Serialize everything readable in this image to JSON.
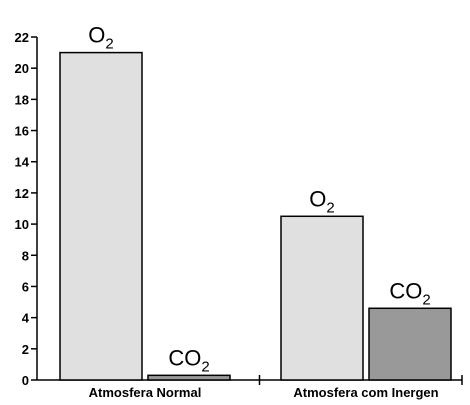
{
  "chart_data": {
    "type": "bar",
    "categories": [
      "Atmosfera Normal",
      "Atmosfera com Inergen"
    ],
    "series": [
      {
        "values": [
          21,
          10.5
        ],
        "labels": [
          [
            "O",
            "2"
          ],
          [
            "O",
            "2"
          ]
        ],
        "color": "#e0e0e0"
      },
      {
        "values": [
          0.3,
          4.6
        ],
        "labels": [
          [
            "CO",
            "2"
          ],
          [
            "CO",
            "2"
          ]
        ],
        "color": "#999999"
      }
    ],
    "ylim": [
      0,
      22
    ],
    "yticks": [
      0,
      2,
      4,
      6,
      8,
      10,
      12,
      14,
      16,
      18,
      20,
      22
    ],
    "title": "",
    "xlabel": "",
    "ylabel": "",
    "grid": false
  }
}
